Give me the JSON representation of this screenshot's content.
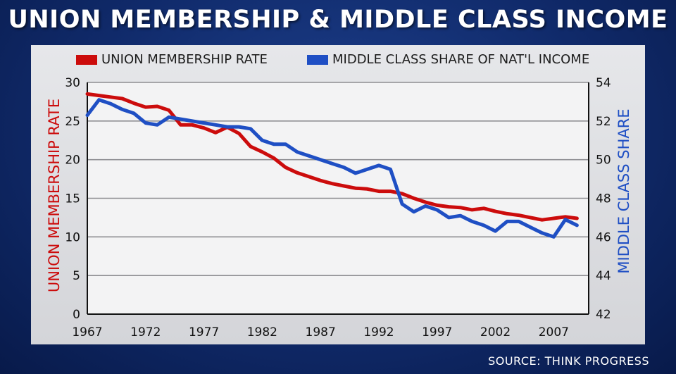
{
  "title": "UNION MEMBERSHIP & MIDDLE CLASS INCOME",
  "source": "SOURCE: THINK PROGRESS",
  "colors": {
    "union": "#cc0c0c",
    "middle": "#1f4fc4",
    "plot_bg": "#f3f3f4",
    "grid": "#8e8e92"
  },
  "legend": [
    {
      "label": "UNION MEMBERSHIP RATE",
      "color": "#cc0c0c"
    },
    {
      "label": "MIDDLE CLASS SHARE OF NAT'L INCOME",
      "color": "#1f4fc4"
    }
  ],
  "chart_data": {
    "type": "line",
    "x_ticks": [
      1967,
      1972,
      1977,
      1982,
      1987,
      1992,
      1997,
      2002,
      2007
    ],
    "xlim": [
      1967,
      2010
    ],
    "y_left": {
      "label": "UNION MEMBERSHIP RATE",
      "ticks": [
        0,
        5,
        10,
        15,
        20,
        25,
        30
      ],
      "lim": [
        0,
        30
      ]
    },
    "y_right": {
      "label": "MIDDLE CLASS SHARE",
      "ticks": [
        42,
        44,
        46,
        48,
        50,
        52,
        54
      ],
      "lim": [
        42,
        54
      ]
    },
    "grid": true,
    "series": [
      {
        "name": "UNION MEMBERSHIP RATE",
        "axis": "left",
        "x": [
          1967,
          1968,
          1969,
          1970,
          1971,
          1972,
          1973,
          1974,
          1975,
          1976,
          1977,
          1978,
          1979,
          1980,
          1981,
          1982,
          1983,
          1984,
          1985,
          1986,
          1987,
          1988,
          1989,
          1990,
          1991,
          1992,
          1993,
          1994,
          1995,
          1996,
          1997,
          1998,
          1999,
          2000,
          2001,
          2002,
          2003,
          2004,
          2005,
          2006,
          2007,
          2008,
          2009
        ],
        "values": [
          28.5,
          28.3,
          28.1,
          27.9,
          27.3,
          26.8,
          26.9,
          26.4,
          24.5,
          24.5,
          24.1,
          23.5,
          24.2,
          23.4,
          21.7,
          21.0,
          20.2,
          19.0,
          18.3,
          17.8,
          17.3,
          16.9,
          16.6,
          16.3,
          16.2,
          15.9,
          15.9,
          15.6,
          15.0,
          14.5,
          14.1,
          13.9,
          13.8,
          13.5,
          13.7,
          13.3,
          13.0,
          12.8,
          12.5,
          12.2,
          12.4,
          12.6,
          12.4
        ]
      },
      {
        "name": "MIDDLE CLASS SHARE OF NAT'L INCOME",
        "axis": "right",
        "x": [
          1967,
          1968,
          1969,
          1970,
          1971,
          1972,
          1973,
          1974,
          1975,
          1976,
          1977,
          1978,
          1979,
          1980,
          1981,
          1982,
          1983,
          1984,
          1985,
          1986,
          1987,
          1988,
          1989,
          1990,
          1991,
          1992,
          1993,
          1994,
          1995,
          1996,
          1997,
          1998,
          1999,
          2000,
          2001,
          2002,
          2003,
          2004,
          2005,
          2006,
          2007,
          2008,
          2009
        ],
        "values": [
          52.3,
          53.1,
          52.9,
          52.6,
          52.4,
          51.9,
          51.8,
          52.2,
          52.1,
          52.0,
          51.9,
          51.8,
          51.7,
          51.7,
          51.6,
          51.0,
          50.8,
          50.8,
          50.4,
          50.2,
          50.0,
          49.8,
          49.6,
          49.3,
          49.5,
          49.7,
          49.5,
          47.7,
          47.3,
          47.6,
          47.4,
          47.0,
          47.1,
          46.8,
          46.6,
          46.3,
          46.8,
          46.8,
          46.5,
          46.2,
          46.0,
          46.9,
          46.6
        ]
      }
    ]
  }
}
